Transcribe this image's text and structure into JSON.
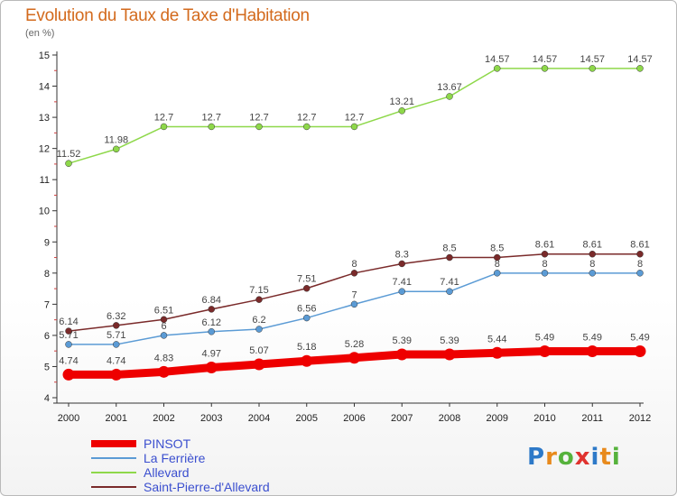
{
  "title": "Evolution du Taux de Taxe d'Habitation",
  "unit_label": "(en %)",
  "logo_text": "Proxiti",
  "chart_data": {
    "type": "line",
    "title": "Evolution du Taux de Taxe d'Habitation",
    "ylabel": "(en %)",
    "xlabel": "",
    "ylim": [
      4,
      15
    ],
    "yticks": [
      "4",
      "5",
      "6",
      "7",
      "8",
      "9",
      "10",
      "11",
      "12",
      "13",
      "14",
      "15"
    ],
    "x": [
      "2000",
      "2001",
      "2002",
      "2003",
      "2004",
      "2005",
      "2006",
      "2007",
      "2008",
      "2009",
      "2010",
      "2011",
      "2012"
    ],
    "grid": false,
    "legend_position": "bottom-left",
    "series": [
      {
        "name": "PINSOT",
        "color": "#ee0000",
        "thick": true,
        "values": [
          4.74,
          4.74,
          4.83,
          4.97,
          5.07,
          5.18,
          5.28,
          5.39,
          5.39,
          5.44,
          5.49,
          5.49,
          5.49
        ],
        "labels": [
          "4.74",
          "4.74",
          "4.83",
          "4.97",
          "5.07",
          "5.18",
          "5.28",
          "5.39",
          "5.39",
          "5.44",
          "5.49",
          "5.49",
          "5.49"
        ]
      },
      {
        "name": "La Ferrière",
        "color": "#5b9bd5",
        "thick": false,
        "values": [
          5.71,
          5.71,
          6,
          6.12,
          6.2,
          6.56,
          7,
          7.41,
          7.41,
          8,
          8,
          8,
          8
        ],
        "labels": [
          "5.71",
          "5.71",
          "6",
          "6.12",
          "6.2",
          "6.56",
          "7",
          "7.41",
          "7.41",
          "8",
          "8",
          "8",
          "8"
        ]
      },
      {
        "name": "Allevard",
        "color": "#8ed84a",
        "thick": false,
        "values": [
          11.52,
          11.98,
          12.7,
          12.7,
          12.7,
          12.7,
          12.7,
          13.21,
          13.67,
          14.57,
          14.57,
          14.57,
          14.57
        ],
        "labels": [
          "11.52",
          "11.98",
          "12.7",
          "12.7",
          "12.7",
          "12.7",
          "12.7",
          "13.21",
          "13.67",
          "14.57",
          "14.57",
          "14.57",
          "14.57"
        ]
      },
      {
        "name": "Saint-Pierre-d'Allevard",
        "color": "#7a2a2a",
        "thick": false,
        "values": [
          6.14,
          6.32,
          6.51,
          6.84,
          7.15,
          7.51,
          8,
          8.3,
          8.5,
          8.5,
          8.61,
          8.61,
          8.61
        ],
        "labels": [
          "6.14",
          "6.32",
          "6.51",
          "6.84",
          "7.15",
          "7.51",
          "8",
          "8.3",
          "8.5",
          "8.5",
          "8.61",
          "8.61",
          "8.61"
        ]
      }
    ]
  }
}
